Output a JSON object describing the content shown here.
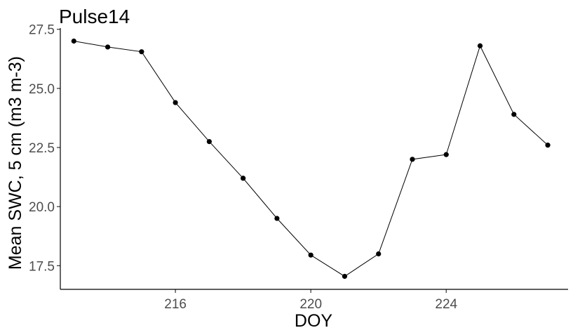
{
  "chart_data": {
    "type": "line",
    "title": "Pulse14",
    "xlabel": "DOY",
    "ylabel": "Mean SWC, 5 cm (m3 m-3)",
    "xlim": [
      212.6,
      227.6
    ],
    "ylim": [
      16.5,
      27.55
    ],
    "x_ticks": [
      216,
      220,
      224
    ],
    "x_tick_labels": [
      "216",
      "220",
      "224"
    ],
    "y_ticks": [
      17.5,
      20.0,
      22.5,
      25.0,
      27.5
    ],
    "y_tick_labels": [
      "17.5",
      "20.0",
      "22.5",
      "25.0",
      "27.5"
    ],
    "grid": false,
    "series": [
      {
        "x": [
          213,
          214,
          215,
          216,
          217,
          218,
          219,
          220,
          221,
          222,
          223,
          224,
          225,
          226,
          227
        ],
        "y": [
          27.0,
          26.75,
          26.55,
          24.4,
          22.75,
          21.2,
          19.5,
          17.95,
          17.05,
          18.0,
          22.0,
          22.2,
          26.8,
          23.9,
          22.6
        ]
      }
    ],
    "colors": {
      "line": "#000000",
      "point": "#000000",
      "axis": "#000000",
      "tick_label": "#4d4d4d"
    }
  }
}
